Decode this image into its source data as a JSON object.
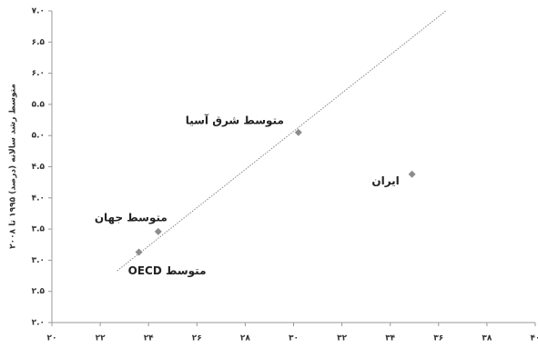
{
  "chart_data": {
    "type": "scatter",
    "y_label": "متوسط رشد سالانه (درصد) ۱۹۹۵ تا ۲۰۰۸",
    "x": [
      30.2,
      34.9,
      24.4,
      23.6
    ],
    "values": [
      5.05,
      4.38,
      3.46,
      3.13
    ],
    "point_labels": [
      "متوسط شرق آسیا",
      "ایران",
      "متوسط جهان",
      "متوسط OECD"
    ],
    "color": "#8c8c8c",
    "trendline": {
      "x": [
        22.7,
        36.3
      ],
      "y": [
        2.83,
        7.0
      ]
    },
    "xlim": [
      20,
      40
    ],
    "xticks": [
      {
        "value": 20,
        "label": "۲۰"
      },
      {
        "value": 22,
        "label": "۲۲"
      },
      {
        "value": 24,
        "label": "۲۴"
      },
      {
        "value": 26,
        "label": "۲۶"
      },
      {
        "value": 28,
        "label": "۲۸"
      },
      {
        "value": 30,
        "label": "۳۰"
      },
      {
        "value": 32,
        "label": "۳۲"
      },
      {
        "value": 34,
        "label": "۳۴"
      },
      {
        "value": 36,
        "label": "۳۶"
      },
      {
        "value": 38,
        "label": "۳۸"
      },
      {
        "value": 40,
        "label": "۴۰"
      }
    ],
    "ylim": [
      2.0,
      7.0
    ],
    "yticks": [
      {
        "value": 2.0,
        "label": "۲.۰"
      },
      {
        "value": 2.5,
        "label": "۲.۵"
      },
      {
        "value": 3.0,
        "label": "۳.۰"
      },
      {
        "value": 3.5,
        "label": "۳.۵"
      },
      {
        "value": 4.0,
        "label": "۴.۰"
      },
      {
        "value": 4.5,
        "label": "۴.۵"
      },
      {
        "value": 5.0,
        "label": "۵.۰"
      },
      {
        "value": 5.5,
        "label": "۵.۵"
      },
      {
        "value": 6.0,
        "label": "۶.۰"
      },
      {
        "value": 6.5,
        "label": "۶.۵"
      },
      {
        "value": 7.0,
        "label": "۷.۰"
      }
    ]
  }
}
